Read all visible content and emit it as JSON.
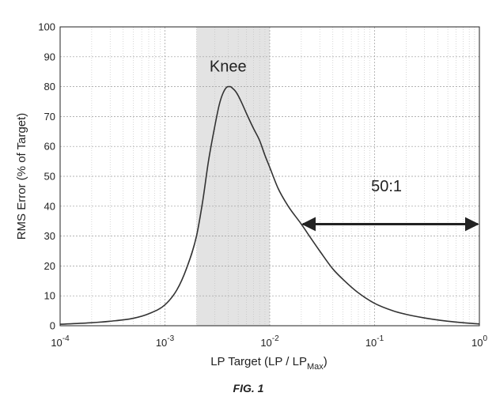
{
  "chart_data": {
    "type": "line",
    "title": "",
    "xlabel": "LP Target  (LP / LP",
    "xlabel_sub": "Max",
    "xlabel_close": ")",
    "ylabel": "RMS Error  (% of Target)",
    "xscale": "log",
    "xlim": [
      0.0001,
      1
    ],
    "ylim": [
      0,
      100
    ],
    "grid": true,
    "x_ticks": [
      {
        "base": "10",
        "exp": "-4",
        "value": 0.0001
      },
      {
        "base": "10",
        "exp": "-3",
        "value": 0.001
      },
      {
        "base": "10",
        "exp": "-2",
        "value": 0.01
      },
      {
        "base": "10",
        "exp": "-1",
        "value": 0.1
      },
      {
        "base": "10",
        "exp": "0",
        "value": 1
      }
    ],
    "y_ticks": [
      "0",
      "10",
      "20",
      "30",
      "40",
      "50",
      "60",
      "70",
      "80",
      "90",
      "100"
    ],
    "shaded_region": {
      "x_range": [
        0.002,
        0.01
      ],
      "color": "#d9d9d9"
    },
    "series": [
      {
        "x": [
          0.0001,
          0.0002,
          0.0003,
          0.0005,
          0.0007,
          0.001,
          0.0013,
          0.0016,
          0.002,
          0.0023,
          0.0026,
          0.003,
          0.0033,
          0.0036,
          0.004,
          0.0042,
          0.0044,
          0.0047,
          0.005,
          0.0055,
          0.006,
          0.007,
          0.008,
          0.009,
          0.01,
          0.012,
          0.015,
          0.02,
          0.025,
          0.03,
          0.04,
          0.05,
          0.07,
          0.1,
          0.15,
          0.2,
          0.3,
          0.5,
          0.7,
          1.0
        ],
        "y": [
          0.5,
          1,
          1.5,
          2.5,
          4,
          7,
          12,
          19,
          30,
          42,
          55,
          67,
          74,
          78,
          80,
          80,
          79.5,
          78.5,
          77,
          74,
          71,
          66,
          62,
          57,
          53,
          46,
          40,
          34,
          29,
          25,
          19,
          15.5,
          11,
          7.5,
          5,
          3.8,
          2.6,
          1.5,
          1,
          0.6
        ]
      }
    ],
    "annotations": [
      {
        "text": "Knee",
        "x": 0.004,
        "y": 85
      },
      {
        "text": "50:1",
        "x": 0.13,
        "y": 45
      },
      {
        "type": "double-arrow",
        "x_start": 0.02,
        "x_end": 1,
        "y": 34
      }
    ]
  },
  "caption": "FIG. 1"
}
